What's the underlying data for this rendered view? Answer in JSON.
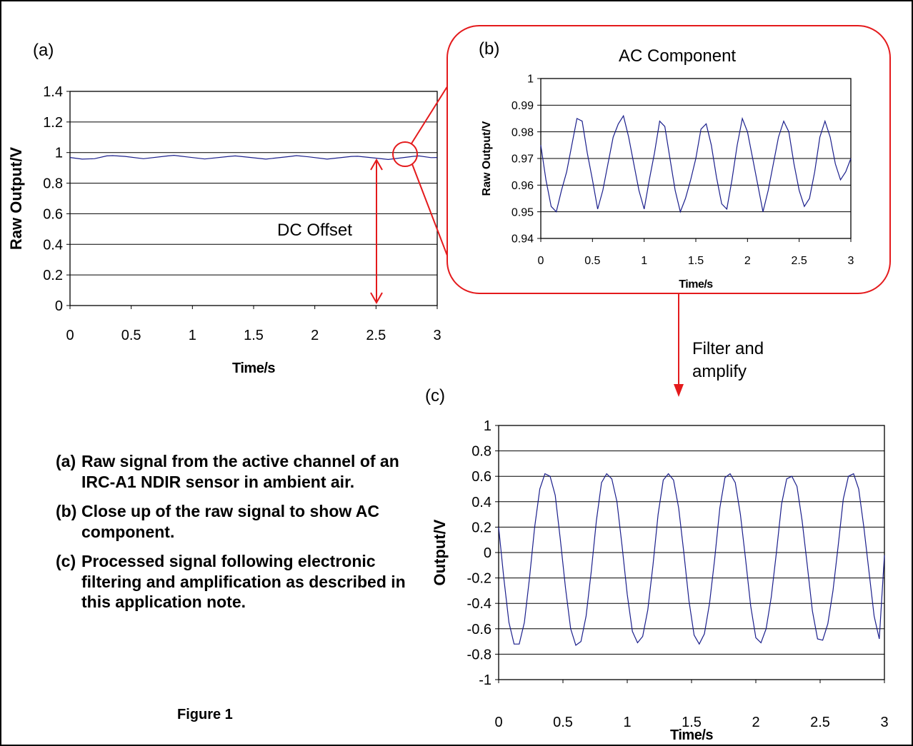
{
  "colors": {
    "series": "#1b1f8c",
    "annotation": "#e41a1c",
    "grid": "#000000",
    "border": "#000000"
  },
  "panels": {
    "a": {
      "tag": "(a)"
    },
    "b": {
      "tag": "(b)",
      "title": "AC Component"
    },
    "c": {
      "tag": "(c)"
    }
  },
  "annotations": {
    "dc_offset": "DC Offset",
    "filter_line1": "Filter and",
    "filter_line2": "amplify"
  },
  "caption": [
    {
      "label": "(a)",
      "text": "Raw signal from the active channel of an IRC-A1 NDIR sensor in ambient air."
    },
    {
      "label": "(b)",
      "text": "Close up of the raw signal to show AC component."
    },
    {
      "label": "(c)",
      "text": "Processed signal following electronic filtering and amplification as described in this application note."
    }
  ],
  "figure_label": "Figure 1",
  "chart_data": [
    {
      "panel": "a",
      "type": "line",
      "xlabel": "Time/s",
      "ylabel": "Raw Output/V",
      "xlim": [
        0,
        3
      ],
      "ylim": [
        0,
        1.4
      ],
      "xticks": [
        "0",
        "0.5",
        "1",
        "1.5",
        "2",
        "2.5",
        "3"
      ],
      "yticks": [
        "0",
        "0.2",
        "0.4",
        "0.6",
        "0.8",
        "1",
        "1.2",
        "1.4"
      ],
      "grid": "horizontal",
      "series": [
        {
          "x": [
            0,
            0.1,
            0.2,
            0.3,
            0.35,
            0.45,
            0.6,
            0.8,
            0.85,
            0.95,
            1.1,
            1.3,
            1.35,
            1.45,
            1.6,
            1.8,
            1.85,
            1.95,
            2.1,
            2.3,
            2.35,
            2.45,
            2.6,
            2.8,
            2.85,
            2.95,
            3.0
          ],
          "y": [
            0.968,
            0.957,
            0.96,
            0.978,
            0.98,
            0.975,
            0.96,
            0.978,
            0.982,
            0.972,
            0.958,
            0.975,
            0.978,
            0.97,
            0.957,
            0.975,
            0.98,
            0.972,
            0.957,
            0.975,
            0.976,
            0.968,
            0.955,
            0.975,
            0.978,
            0.967,
            0.968
          ]
        }
      ]
    },
    {
      "panel": "b",
      "type": "line",
      "xlabel": "Time/s",
      "ylabel": "Raw Output/V",
      "xlim": [
        0,
        3
      ],
      "ylim": [
        0.94,
        1
      ],
      "xticks": [
        "0",
        "0.5",
        "1",
        "1.5",
        "2",
        "2.5",
        "3"
      ],
      "yticks": [
        "0.94",
        "0.95",
        "0.96",
        "0.97",
        "0.98",
        "0.99",
        "1"
      ],
      "grid": "horizontal",
      "series": [
        {
          "x": [
            0,
            0.05,
            0.1,
            0.15,
            0.2,
            0.25,
            0.3,
            0.35,
            0.4,
            0.45,
            0.5,
            0.55,
            0.6,
            0.65,
            0.7,
            0.75,
            0.8,
            0.85,
            0.9,
            0.95,
            1.0,
            1.05,
            1.1,
            1.15,
            1.2,
            1.25,
            1.3,
            1.35,
            1.4,
            1.45,
            1.5,
            1.55,
            1.6,
            1.65,
            1.7,
            1.75,
            1.8,
            1.85,
            1.9,
            1.95,
            2.0,
            2.05,
            2.1,
            2.15,
            2.2,
            2.25,
            2.3,
            2.35,
            2.4,
            2.45,
            2.5,
            2.55,
            2.6,
            2.65,
            2.7,
            2.75,
            2.8,
            2.85,
            2.9,
            2.95,
            3.0
          ],
          "y": [
            0.975,
            0.962,
            0.952,
            0.95,
            0.958,
            0.965,
            0.975,
            0.985,
            0.984,
            0.972,
            0.962,
            0.951,
            0.958,
            0.968,
            0.978,
            0.983,
            0.986,
            0.978,
            0.968,
            0.958,
            0.951,
            0.962,
            0.972,
            0.984,
            0.982,
            0.97,
            0.958,
            0.95,
            0.955,
            0.962,
            0.97,
            0.981,
            0.983,
            0.975,
            0.963,
            0.953,
            0.951,
            0.962,
            0.975,
            0.985,
            0.98,
            0.97,
            0.96,
            0.95,
            0.958,
            0.968,
            0.978,
            0.984,
            0.98,
            0.968,
            0.958,
            0.952,
            0.955,
            0.965,
            0.978,
            0.984,
            0.978,
            0.968,
            0.962,
            0.965,
            0.97
          ]
        }
      ]
    },
    {
      "panel": "c",
      "type": "line",
      "xlabel": "Time/s",
      "ylabel": "Output/V",
      "xlim": [
        0,
        3
      ],
      "ylim": [
        -1,
        1
      ],
      "xticks": [
        "0",
        "0.5",
        "1",
        "1.5",
        "2",
        "2.5",
        "3"
      ],
      "yticks": [
        "-1",
        "-0.8",
        "-0.6",
        "-0.4",
        "-0.2",
        "0",
        "0.2",
        "0.4",
        "0.6",
        "0.8",
        "1"
      ],
      "grid": "horizontal",
      "series": [
        {
          "x": [
            0,
            0.04,
            0.08,
            0.12,
            0.16,
            0.2,
            0.24,
            0.28,
            0.32,
            0.36,
            0.4,
            0.44,
            0.48,
            0.52,
            0.56,
            0.6,
            0.64,
            0.68,
            0.72,
            0.76,
            0.8,
            0.84,
            0.88,
            0.92,
            0.96,
            1.0,
            1.04,
            1.08,
            1.12,
            1.16,
            1.2,
            1.24,
            1.28,
            1.32,
            1.36,
            1.4,
            1.44,
            1.48,
            1.52,
            1.56,
            1.6,
            1.64,
            1.68,
            1.72,
            1.76,
            1.8,
            1.84,
            1.88,
            1.92,
            1.96,
            2.0,
            2.04,
            2.08,
            2.12,
            2.16,
            2.2,
            2.24,
            2.28,
            2.32,
            2.36,
            2.4,
            2.44,
            2.48,
            2.52,
            2.56,
            2.6,
            2.64,
            2.68,
            2.72,
            2.76,
            2.8,
            2.84,
            2.88,
            2.92,
            2.96,
            3.0
          ],
          "y": [
            0.2,
            -0.2,
            -0.55,
            -0.72,
            -0.72,
            -0.55,
            -0.2,
            0.2,
            0.5,
            0.62,
            0.6,
            0.45,
            0.1,
            -0.28,
            -0.6,
            -0.73,
            -0.7,
            -0.5,
            -0.15,
            0.25,
            0.55,
            0.62,
            0.58,
            0.4,
            0.05,
            -0.33,
            -0.62,
            -0.71,
            -0.66,
            -0.45,
            -0.1,
            0.3,
            0.57,
            0.62,
            0.57,
            0.35,
            0.0,
            -0.38,
            -0.65,
            -0.72,
            -0.64,
            -0.4,
            -0.05,
            0.35,
            0.59,
            0.62,
            0.55,
            0.3,
            -0.05,
            -0.42,
            -0.67,
            -0.71,
            -0.6,
            -0.35,
            0.0,
            0.38,
            0.58,
            0.6,
            0.52,
            0.25,
            -0.1,
            -0.46,
            -0.68,
            -0.69,
            -0.56,
            -0.3,
            0.05,
            0.42,
            0.6,
            0.62,
            0.5,
            0.2,
            -0.15,
            -0.5,
            -0.68,
            -0.02
          ]
        }
      ]
    }
  ]
}
